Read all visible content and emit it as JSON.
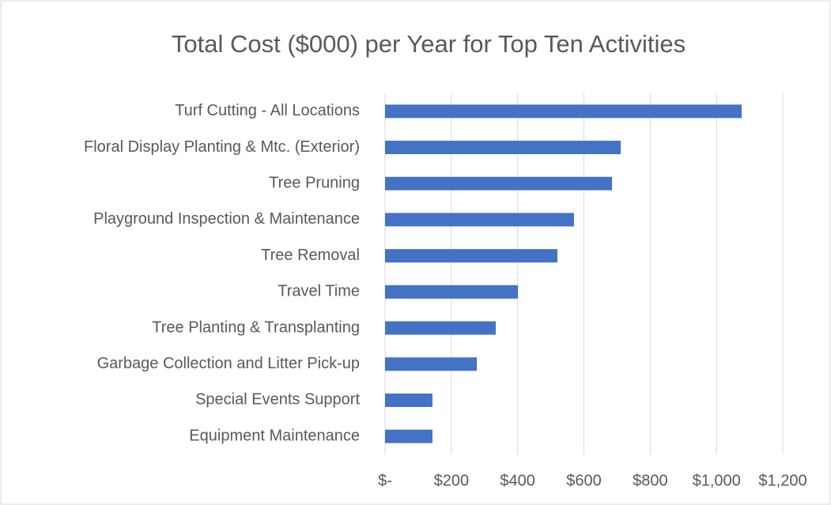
{
  "chart_data": {
    "type": "bar",
    "orientation": "horizontal",
    "title": "Total Cost ($000) per Year for Top Ten Activities",
    "categories": [
      "Turf Cutting - All Locations",
      "Floral Display Planting & Mtc. (Exterior)",
      "Tree Pruning",
      "Playground Inspection & Maintenance",
      "Tree Removal",
      "Travel Time",
      "Tree Planting & Transplanting",
      "Garbage Collection and Litter Pick-up",
      "Special Events Support",
      "Equipment Maintenance"
    ],
    "values": [
      1076,
      711,
      685,
      570,
      520,
      401,
      334,
      277,
      143,
      143
    ],
    "color": "#4472c4",
    "xlim": [
      0,
      1200
    ],
    "xticks": [
      {
        "value": 0,
        "label": "$-"
      },
      {
        "value": 200,
        "label": "$200"
      },
      {
        "value": 400,
        "label": "$400"
      },
      {
        "value": 600,
        "label": "$600"
      },
      {
        "value": 800,
        "label": "$800"
      },
      {
        "value": 1000,
        "label": "$1,000"
      },
      {
        "value": 1200,
        "label": "$1,200"
      }
    ],
    "grid": true
  }
}
